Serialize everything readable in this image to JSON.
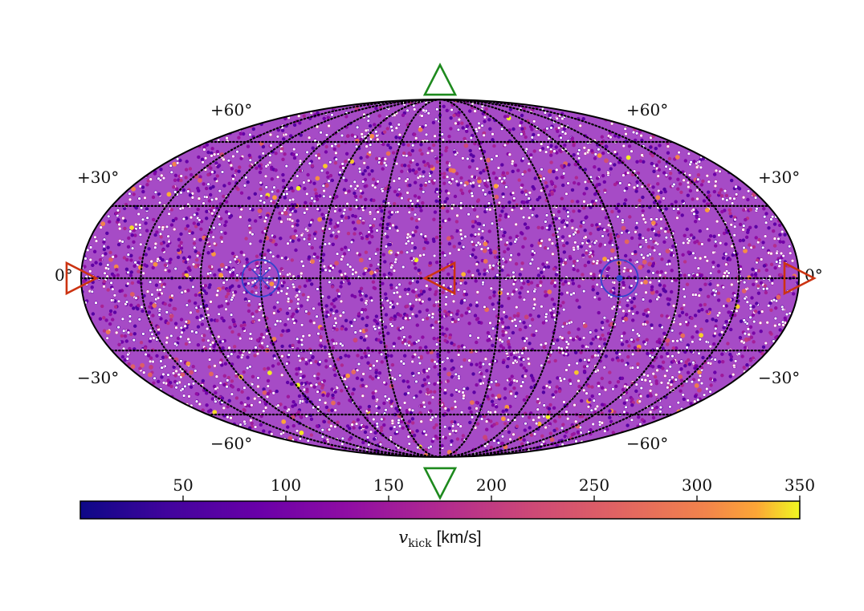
{
  "chart_data": {
    "type": "scatter",
    "projection": "mollweide",
    "description_of_marks": "dense uniform sky distribution of kick-direction points colored by kick velocity",
    "latitude_ticks": [
      "+60°",
      "+30°",
      "0°",
      "−30°",
      "−60°"
    ],
    "colorbar": {
      "colormap": "plasma",
      "range": [
        0,
        350
      ],
      "ticks": [
        50,
        100,
        150,
        200,
        250,
        300,
        350
      ],
      "label_main": "v",
      "label_sub": "kick",
      "label_unit": "[km/s]"
    },
    "markers": [
      {
        "kind": "triangle-up",
        "color": "#1e8a1e",
        "lon": 0,
        "lat": 90
      },
      {
        "kind": "triangle-down",
        "color": "#1e8a1e",
        "lon": 0,
        "lat": -90
      },
      {
        "kind": "triangle-left",
        "color": "#cc3311",
        "lon": 0,
        "lat": 0
      },
      {
        "kind": "triangle-right",
        "color": "#cc3311",
        "lon": -180,
        "lat": 0
      },
      {
        "kind": "triangle-right",
        "color": "#cc3311",
        "lon": 180,
        "lat": 0
      },
      {
        "kind": "circle-cross",
        "color": "#3344cc",
        "lon": -90,
        "lat": 0
      },
      {
        "kind": "circle-dot",
        "color": "#3344cc",
        "lon": 90,
        "lat": 0
      }
    ],
    "grid": true,
    "point_velocity_distribution": {
      "mostly_between": [
        60,
        200
      ],
      "rare_high_up_to": 350
    }
  }
}
